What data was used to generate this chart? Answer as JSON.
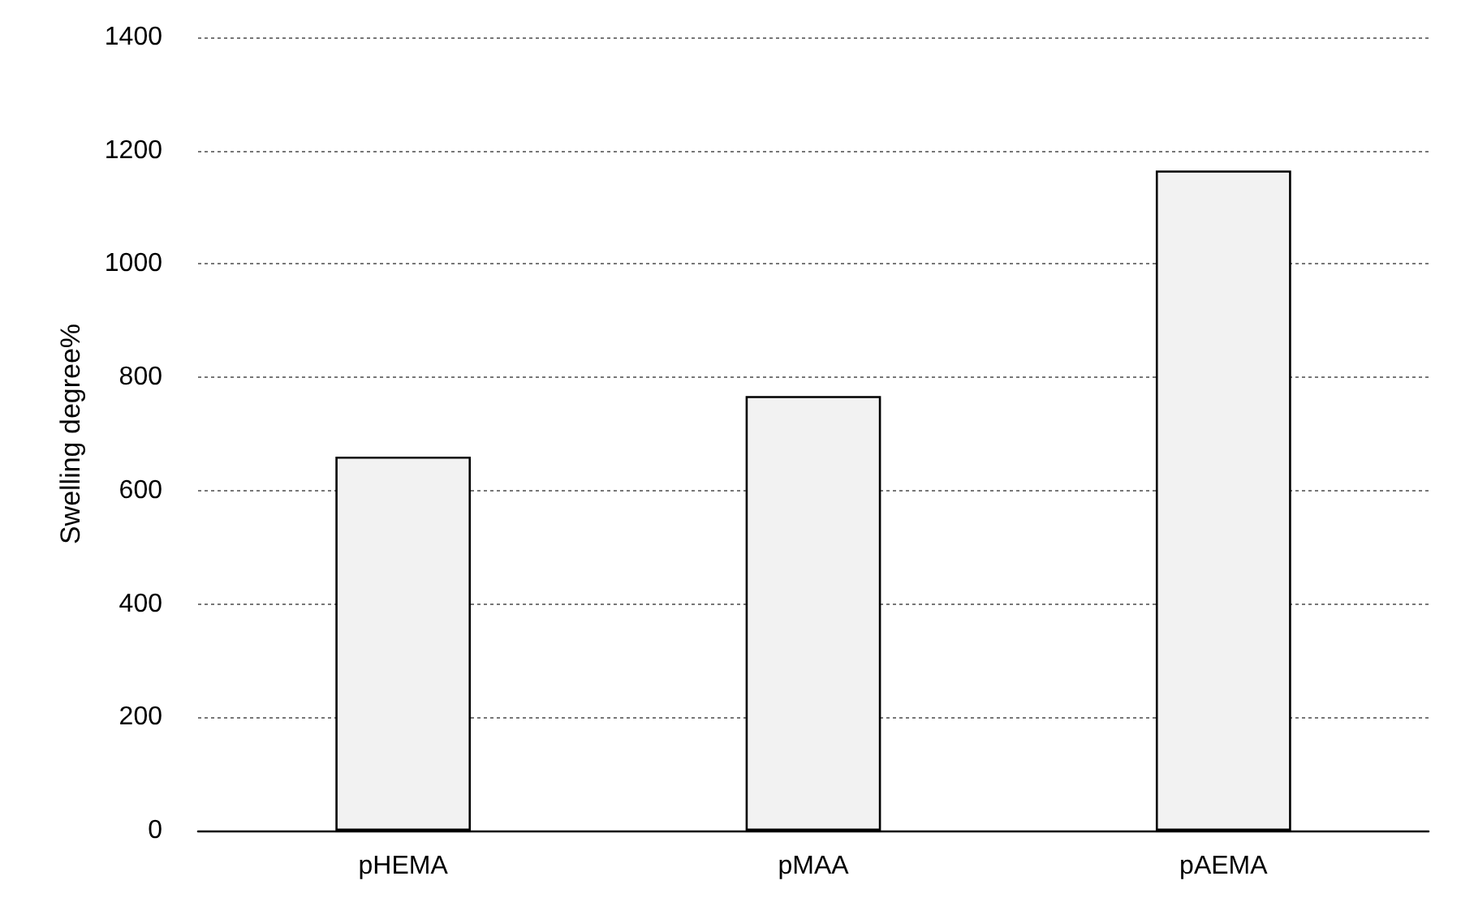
{
  "chart_data": {
    "type": "bar",
    "ylabel": "Swelling degree%",
    "categories": [
      "pHEMA",
      "pMAA",
      "pAEMA"
    ],
    "values": [
      660,
      767,
      1165
    ],
    "color": "#f2f2f2",
    "ylim": [
      0,
      1400
    ],
    "yticks": [
      0,
      200,
      400,
      600,
      800,
      1000,
      1200,
      1400
    ],
    "grid": "y"
  }
}
